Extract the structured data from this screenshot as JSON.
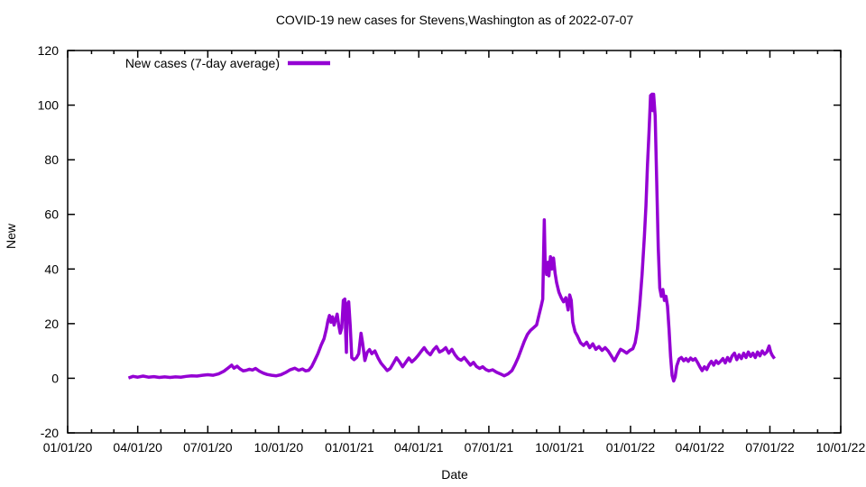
{
  "chart_data": {
    "type": "line",
    "title": "COVID-19 new cases for Stevens,Washington as of 2022-07-07",
    "xlabel": "Date",
    "ylabel": "New",
    "ylim": [
      -20,
      120
    ],
    "x_min": "2020-01-01",
    "x_max": "2022-10-01",
    "grid": false,
    "legend_position": "top-left-inside",
    "line_color": "#9400d3",
    "axis_color": "#000000",
    "background_color": "#ffffff",
    "yticks": [
      -20,
      0,
      20,
      40,
      60,
      80,
      100,
      120
    ],
    "xticks": [
      {
        "date": "2020-01-01",
        "label": "01/01/20"
      },
      {
        "date": "2020-04-01",
        "label": "04/01/20"
      },
      {
        "date": "2020-07-01",
        "label": "07/01/20"
      },
      {
        "date": "2020-10-01",
        "label": "10/01/20"
      },
      {
        "date": "2021-01-01",
        "label": "01/01/21"
      },
      {
        "date": "2021-04-01",
        "label": "04/01/21"
      },
      {
        "date": "2021-07-01",
        "label": "07/01/21"
      },
      {
        "date": "2021-10-01",
        "label": "10/01/21"
      },
      {
        "date": "2022-01-01",
        "label": "01/01/22"
      },
      {
        "date": "2022-04-01",
        "label": "04/01/22"
      },
      {
        "date": "2022-07-01",
        "label": "07/01/22"
      },
      {
        "date": "2022-10-01",
        "label": "10/01/22"
      }
    ],
    "series": [
      {
        "name": "New cases (7-day average)",
        "color": "#9400d3",
        "points": [
          [
            "2020-03-20",
            0.1
          ],
          [
            "2020-03-26",
            0.7
          ],
          [
            "2020-04-01",
            0.4
          ],
          [
            "2020-04-08",
            0.8
          ],
          [
            "2020-04-15",
            0.4
          ],
          [
            "2020-04-22",
            0.6
          ],
          [
            "2020-04-29",
            0.3
          ],
          [
            "2020-05-06",
            0.5
          ],
          [
            "2020-05-13",
            0.3
          ],
          [
            "2020-05-20",
            0.5
          ],
          [
            "2020-05-27",
            0.4
          ],
          [
            "2020-06-03",
            0.7
          ],
          [
            "2020-06-10",
            0.9
          ],
          [
            "2020-06-17",
            0.8
          ],
          [
            "2020-06-24",
            1.1
          ],
          [
            "2020-07-01",
            1.3
          ],
          [
            "2020-07-08",
            1.1
          ],
          [
            "2020-07-15",
            1.6
          ],
          [
            "2020-07-22",
            2.6
          ],
          [
            "2020-07-28",
            3.9
          ],
          [
            "2020-08-01",
            4.8
          ],
          [
            "2020-08-04",
            3.7
          ],
          [
            "2020-08-08",
            4.4
          ],
          [
            "2020-08-12",
            3.4
          ],
          [
            "2020-08-16",
            2.7
          ],
          [
            "2020-08-20",
            2.9
          ],
          [
            "2020-08-24",
            3.3
          ],
          [
            "2020-08-28",
            3.0
          ],
          [
            "2020-09-01",
            3.6
          ],
          [
            "2020-09-06",
            2.6
          ],
          [
            "2020-09-11",
            1.9
          ],
          [
            "2020-09-16",
            1.4
          ],
          [
            "2020-09-22",
            1.1
          ],
          [
            "2020-09-28",
            0.9
          ],
          [
            "2020-10-04",
            1.3
          ],
          [
            "2020-10-10",
            2.1
          ],
          [
            "2020-10-16",
            3.1
          ],
          [
            "2020-10-22",
            3.7
          ],
          [
            "2020-10-27",
            2.9
          ],
          [
            "2020-11-01",
            3.4
          ],
          [
            "2020-11-05",
            2.7
          ],
          [
            "2020-11-09",
            2.9
          ],
          [
            "2020-11-13",
            4.3
          ],
          [
            "2020-11-17",
            6.6
          ],
          [
            "2020-11-21",
            9.0
          ],
          [
            "2020-11-25",
            12.0
          ],
          [
            "2020-11-29",
            14.5
          ],
          [
            "2020-12-02",
            18.0
          ],
          [
            "2020-12-04",
            21.0
          ],
          [
            "2020-12-06",
            23.0
          ],
          [
            "2020-12-08",
            20.5
          ],
          [
            "2020-12-10",
            22.5
          ],
          [
            "2020-12-12",
            19.5
          ],
          [
            "2020-12-14",
            21.5
          ],
          [
            "2020-12-16",
            23.5
          ],
          [
            "2020-12-18",
            19.5
          ],
          [
            "2020-12-20",
            16.5
          ],
          [
            "2020-12-22",
            18.5
          ],
          [
            "2020-12-24",
            28.5
          ],
          [
            "2020-12-26",
            29.0
          ],
          [
            "2020-12-27",
            17.0
          ],
          [
            "2020-12-28",
            9.5
          ],
          [
            "2020-12-29",
            27.0
          ],
          [
            "2020-12-31",
            28.0
          ],
          [
            "2021-01-02",
            19.0
          ],
          [
            "2021-01-04",
            7.5
          ],
          [
            "2021-01-07",
            6.8
          ],
          [
            "2021-01-10",
            7.5
          ],
          [
            "2021-01-13",
            9.0
          ],
          [
            "2021-01-16",
            16.5
          ],
          [
            "2021-01-18",
            13.0
          ],
          [
            "2021-01-21",
            6.5
          ],
          [
            "2021-01-24",
            9.5
          ],
          [
            "2021-01-27",
            10.5
          ],
          [
            "2021-01-30",
            9.0
          ],
          [
            "2021-02-03",
            10.0
          ],
          [
            "2021-02-07",
            7.5
          ],
          [
            "2021-02-11",
            5.5
          ],
          [
            "2021-02-15",
            4.2
          ],
          [
            "2021-02-19",
            2.8
          ],
          [
            "2021-02-23",
            3.6
          ],
          [
            "2021-02-27",
            5.5
          ],
          [
            "2021-03-03",
            7.5
          ],
          [
            "2021-03-07",
            6.0
          ],
          [
            "2021-03-11",
            4.2
          ],
          [
            "2021-03-15",
            5.8
          ],
          [
            "2021-03-19",
            7.4
          ],
          [
            "2021-03-23",
            6.0
          ],
          [
            "2021-03-27",
            7.0
          ],
          [
            "2021-03-31",
            8.3
          ],
          [
            "2021-04-04",
            9.8
          ],
          [
            "2021-04-08",
            11.2
          ],
          [
            "2021-04-12",
            9.6
          ],
          [
            "2021-04-16",
            8.6
          ],
          [
            "2021-04-20",
            10.4
          ],
          [
            "2021-04-24",
            11.6
          ],
          [
            "2021-04-28",
            9.6
          ],
          [
            "2021-05-02",
            10.2
          ],
          [
            "2021-05-06",
            11.2
          ],
          [
            "2021-05-10",
            9.2
          ],
          [
            "2021-05-14",
            10.6
          ],
          [
            "2021-05-18",
            8.6
          ],
          [
            "2021-05-22",
            7.2
          ],
          [
            "2021-05-26",
            6.6
          ],
          [
            "2021-05-30",
            7.6
          ],
          [
            "2021-06-03",
            6.2
          ],
          [
            "2021-06-07",
            4.8
          ],
          [
            "2021-06-11",
            5.8
          ],
          [
            "2021-06-15",
            4.3
          ],
          [
            "2021-06-19",
            3.6
          ],
          [
            "2021-06-23",
            4.2
          ],
          [
            "2021-06-27",
            3.2
          ],
          [
            "2021-07-01",
            2.7
          ],
          [
            "2021-07-06",
            3.1
          ],
          [
            "2021-07-11",
            2.2
          ],
          [
            "2021-07-16",
            1.6
          ],
          [
            "2021-07-21",
            0.9
          ],
          [
            "2021-07-26",
            1.6
          ],
          [
            "2021-07-31",
            2.8
          ],
          [
            "2021-08-04",
            5.0
          ],
          [
            "2021-08-08",
            7.5
          ],
          [
            "2021-08-12",
            10.5
          ],
          [
            "2021-08-16",
            13.5
          ],
          [
            "2021-08-20",
            16.0
          ],
          [
            "2021-08-24",
            17.5
          ],
          [
            "2021-08-28",
            18.5
          ],
          [
            "2021-09-01",
            19.5
          ],
          [
            "2021-09-04",
            23.0
          ],
          [
            "2021-09-07",
            26.5
          ],
          [
            "2021-09-09",
            29.0
          ],
          [
            "2021-09-10",
            44.0
          ],
          [
            "2021-09-11",
            58.0
          ],
          [
            "2021-09-12",
            43.5
          ],
          [
            "2021-09-14",
            38.0
          ],
          [
            "2021-09-16",
            42.5
          ],
          [
            "2021-09-17",
            37.5
          ],
          [
            "2021-09-19",
            44.5
          ],
          [
            "2021-09-21",
            40.0
          ],
          [
            "2021-09-23",
            44.0
          ],
          [
            "2021-09-25",
            38.5
          ],
          [
            "2021-09-27",
            35.0
          ],
          [
            "2021-09-30",
            31.5
          ],
          [
            "2021-10-03",
            29.5
          ],
          [
            "2021-10-06",
            28.0
          ],
          [
            "2021-10-09",
            29.5
          ],
          [
            "2021-10-12",
            25.0
          ],
          [
            "2021-10-14",
            30.5
          ],
          [
            "2021-10-16",
            28.5
          ],
          [
            "2021-10-18",
            20.5
          ],
          [
            "2021-10-21",
            17.0
          ],
          [
            "2021-10-24",
            15.5
          ],
          [
            "2021-10-28",
            13.0
          ],
          [
            "2021-11-01",
            12.0
          ],
          [
            "2021-11-05",
            13.2
          ],
          [
            "2021-11-09",
            11.2
          ],
          [
            "2021-11-13",
            12.6
          ],
          [
            "2021-11-17",
            10.6
          ],
          [
            "2021-11-21",
            11.6
          ],
          [
            "2021-11-25",
            10.2
          ],
          [
            "2021-11-29",
            11.2
          ],
          [
            "2021-12-03",
            10.0
          ],
          [
            "2021-12-07",
            8.2
          ],
          [
            "2021-12-11",
            6.4
          ],
          [
            "2021-12-15",
            8.6
          ],
          [
            "2021-12-19",
            10.6
          ],
          [
            "2021-12-23",
            10.0
          ],
          [
            "2021-12-27",
            9.2
          ],
          [
            "2021-12-31",
            10.2
          ],
          [
            "2022-01-04",
            10.8
          ],
          [
            "2022-01-07",
            13.0
          ],
          [
            "2022-01-10",
            18.0
          ],
          [
            "2022-01-13",
            27.0
          ],
          [
            "2022-01-16",
            38.0
          ],
          [
            "2022-01-19",
            52.0
          ],
          [
            "2022-01-21",
            63.0
          ],
          [
            "2022-01-23",
            78.0
          ],
          [
            "2022-01-25",
            90.0
          ],
          [
            "2022-01-27",
            103.5
          ],
          [
            "2022-01-29",
            104.0
          ],
          [
            "2022-01-30",
            98.0
          ],
          [
            "2022-01-31",
            104.0
          ],
          [
            "2022-02-02",
            96.0
          ],
          [
            "2022-02-04",
            72.0
          ],
          [
            "2022-02-06",
            48.0
          ],
          [
            "2022-02-08",
            33.0
          ],
          [
            "2022-02-10",
            30.0
          ],
          [
            "2022-02-12",
            32.5
          ],
          [
            "2022-02-14",
            28.5
          ],
          [
            "2022-02-16",
            30.0
          ],
          [
            "2022-02-18",
            26.5
          ],
          [
            "2022-02-20",
            18.0
          ],
          [
            "2022-02-22",
            8.0
          ],
          [
            "2022-02-24",
            1.0
          ],
          [
            "2022-02-26",
            -1.0
          ],
          [
            "2022-02-28",
            0.5
          ],
          [
            "2022-03-02",
            4.5
          ],
          [
            "2022-03-05",
            7.0
          ],
          [
            "2022-03-08",
            7.6
          ],
          [
            "2022-03-11",
            6.4
          ],
          [
            "2022-03-14",
            7.2
          ],
          [
            "2022-03-17",
            6.2
          ],
          [
            "2022-03-20",
            7.4
          ],
          [
            "2022-03-23",
            6.6
          ],
          [
            "2022-03-26",
            7.2
          ],
          [
            "2022-03-29",
            5.8
          ],
          [
            "2022-04-01",
            4.2
          ],
          [
            "2022-04-04",
            2.8
          ],
          [
            "2022-04-07",
            4.2
          ],
          [
            "2022-04-10",
            3.2
          ],
          [
            "2022-04-13",
            5.0
          ],
          [
            "2022-04-16",
            6.2
          ],
          [
            "2022-04-19",
            4.8
          ],
          [
            "2022-04-22",
            6.4
          ],
          [
            "2022-04-25",
            5.4
          ],
          [
            "2022-04-28",
            6.2
          ],
          [
            "2022-05-01",
            7.2
          ],
          [
            "2022-05-04",
            5.6
          ],
          [
            "2022-05-07",
            7.6
          ],
          [
            "2022-05-10",
            6.2
          ],
          [
            "2022-05-13",
            8.2
          ],
          [
            "2022-05-16",
            9.2
          ],
          [
            "2022-05-19",
            6.8
          ],
          [
            "2022-05-22",
            8.6
          ],
          [
            "2022-05-25",
            7.2
          ],
          [
            "2022-05-28",
            9.2
          ],
          [
            "2022-05-31",
            7.6
          ],
          [
            "2022-06-03",
            9.6
          ],
          [
            "2022-06-06",
            8.0
          ],
          [
            "2022-06-09",
            9.2
          ],
          [
            "2022-06-12",
            7.6
          ],
          [
            "2022-06-15",
            9.6
          ],
          [
            "2022-06-18",
            8.2
          ],
          [
            "2022-06-21",
            10.0
          ],
          [
            "2022-06-24",
            8.8
          ],
          [
            "2022-06-27",
            9.6
          ],
          [
            "2022-06-30",
            11.8
          ],
          [
            "2022-07-02",
            9.6
          ],
          [
            "2022-07-04",
            8.4
          ],
          [
            "2022-07-07",
            7.2
          ]
        ]
      }
    ]
  }
}
